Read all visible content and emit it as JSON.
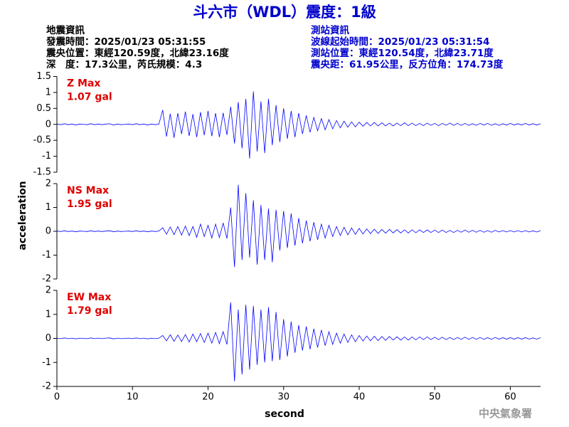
{
  "chart_data": {
    "type": "line",
    "title": "斗六市（WDL）震度：1級",
    "info_left": [
      "地震資訊",
      "發震時間：2025/01/23 05:31:55",
      "震央位置：東經120.59度，北緯23.16度",
      "深　度：17.3公里，芮氏規模：4.3"
    ],
    "info_right": [
      "測站資訊",
      "波線起始時間：2025/01/23 05:31:54",
      "測站位置：東經120.54度，北緯23.71度",
      "震央距：61.95公里，反方位角：174.73度"
    ],
    "footer": "中央氣象署",
    "xlabel": "second",
    "ylabel": "acceleration",
    "xlim": [
      0,
      64
    ],
    "xticks": [
      0,
      10,
      20,
      30,
      40,
      50,
      60
    ],
    "x": [
      0,
      0.5,
      1,
      1.5,
      2,
      2.5,
      3,
      3.5,
      4,
      4.5,
      5,
      5.5,
      6,
      6.5,
      7,
      7.5,
      8,
      8.5,
      9,
      9.5,
      10,
      10.5,
      11,
      11.5,
      12,
      12.5,
      13,
      13.5,
      14,
      14.5,
      15,
      15.5,
      16,
      16.5,
      17,
      17.5,
      18,
      18.5,
      19,
      19.5,
      20,
      20.5,
      21,
      21.5,
      22,
      22.5,
      23,
      23.5,
      24,
      24.5,
      25,
      25.5,
      26,
      26.5,
      27,
      27.5,
      28,
      28.5,
      29,
      29.5,
      30,
      30.5,
      31,
      31.5,
      32,
      32.5,
      33,
      33.5,
      34,
      34.5,
      35,
      35.5,
      36,
      36.5,
      37,
      37.5,
      38,
      38.5,
      39,
      39.5,
      40,
      40.5,
      41,
      41.5,
      42,
      42.5,
      43,
      43.5,
      44,
      44.5,
      45,
      45.5,
      46,
      46.5,
      47,
      47.5,
      48,
      48.5,
      49,
      49.5,
      50,
      50.5,
      51,
      51.5,
      52,
      52.5,
      53,
      53.5,
      54,
      54.5,
      55,
      55.5,
      56,
      56.5,
      57,
      57.5,
      58,
      58.5,
      59,
      59.5,
      60,
      60.5,
      61,
      61.5,
      62,
      62.5,
      63,
      63.5,
      64
    ],
    "series": [
      {
        "name": "Z Max",
        "annotation": "1.07 gal",
        "color": "#0000ff",
        "label_color": "#e00000",
        "ylim": [
          -1.5,
          1.5
        ],
        "yticks": [
          1.5,
          1,
          0.5,
          0,
          -0.5,
          -1,
          -1.5
        ],
        "values": [
          0.01,
          -0.01,
          0.02,
          -0.01,
          0.01,
          -0.02,
          0.01,
          0,
          -0.01,
          0.02,
          -0.01,
          0.01,
          -0.01,
          0.01,
          0.02,
          -0.02,
          0.01,
          -0.01,
          0,
          0.01,
          -0.01,
          0.02,
          -0.01,
          0.01,
          -0.02,
          0.01,
          -0.01,
          0.01,
          0.45,
          -0.38,
          0.33,
          -0.42,
          0.35,
          -0.3,
          0.4,
          -0.36,
          0.32,
          -0.4,
          0.38,
          -0.34,
          0.42,
          -0.37,
          0.35,
          -0.4,
          0.36,
          -0.33,
          0.55,
          -0.6,
          0.7,
          -0.75,
          0.8,
          -1.07,
          1.03,
          -0.85,
          0.72,
          -0.9,
          0.8,
          -0.65,
          0.6,
          -0.55,
          0.5,
          -0.45,
          0.42,
          -0.4,
          0.35,
          -0.3,
          0.28,
          -0.25,
          0.22,
          -0.2,
          0.18,
          -0.17,
          0.15,
          -0.14,
          0.12,
          -0.11,
          0.1,
          -0.09,
          0.08,
          -0.08,
          0.07,
          -0.06,
          0.06,
          -0.05,
          0.06,
          -0.05,
          0.05,
          -0.05,
          0.04,
          -0.05,
          0.04,
          -0.04,
          0.05,
          -0.04,
          0.04,
          -0.04,
          0.03,
          -0.04,
          0.04,
          -0.03,
          0.03,
          -0.04,
          0.03,
          -0.03,
          0.04,
          -0.03,
          0.03,
          -0.03,
          0.03,
          -0.03,
          0.02,
          -0.03,
          0.03,
          -0.02,
          0.03,
          -0.03,
          0.02,
          -0.03,
          0.02,
          -0.02,
          0.03,
          -0.02,
          0.02,
          -0.02,
          0.03,
          -0.02,
          0.02,
          -0.02,
          0.02
        ]
      },
      {
        "name": "NS Max",
        "annotation": "1.95 gal",
        "color": "#0000ff",
        "label_color": "#e00000",
        "ylim": [
          -2,
          2
        ],
        "yticks": [
          2,
          1,
          0,
          -1,
          -2
        ],
        "values": [
          0.01,
          -0.01,
          0.02,
          -0.01,
          0.01,
          -0.02,
          0.01,
          0,
          -0.01,
          0.02,
          -0.01,
          0.01,
          -0.01,
          0.01,
          0.02,
          -0.02,
          0.01,
          -0.01,
          0,
          0.01,
          -0.01,
          0.02,
          -0.01,
          0.01,
          -0.02,
          0.01,
          -0.01,
          0.01,
          0.15,
          -0.12,
          0.18,
          -0.14,
          0.2,
          -0.16,
          0.22,
          -0.18,
          0.2,
          -0.25,
          0.3,
          -0.22,
          0.25,
          -0.28,
          0.3,
          -0.26,
          0.35,
          -0.3,
          1.0,
          -1.5,
          1.95,
          -1.2,
          1.6,
          -1.1,
          1.3,
          -1.4,
          1.1,
          -1.2,
          0.95,
          -1.3,
          0.9,
          -0.8,
          0.85,
          -0.7,
          0.75,
          -0.6,
          0.55,
          -0.5,
          0.45,
          -0.42,
          0.38,
          -0.35,
          0.3,
          -0.28,
          0.25,
          -0.22,
          0.2,
          -0.18,
          0.17,
          -0.15,
          0.14,
          -0.13,
          0.12,
          -0.11,
          0.1,
          -0.1,
          0.09,
          -0.09,
          0.08,
          -0.08,
          0.08,
          -0.07,
          0.07,
          -0.07,
          0.06,
          -0.07,
          0.06,
          -0.06,
          0.06,
          -0.05,
          0.06,
          -0.05,
          0.05,
          -0.05,
          0.05,
          -0.05,
          0.04,
          -0.05,
          0.04,
          -0.04,
          0.05,
          -0.04,
          0.04,
          -0.04,
          0.04,
          -0.04,
          0.03,
          -0.04,
          0.04,
          -0.03,
          0.03,
          -0.03,
          0.03,
          -0.03,
          0.03,
          -0.03,
          0.03,
          -0.03,
          0.02,
          -0.03,
          0.03
        ]
      },
      {
        "name": "EW Max",
        "annotation": "1.79 gal",
        "color": "#0000ff",
        "label_color": "#e00000",
        "ylim": [
          -2,
          2
        ],
        "yticks": [
          2,
          1,
          0,
          -1,
          -2
        ],
        "values": [
          0.01,
          -0.01,
          0.02,
          -0.01,
          0.01,
          -0.02,
          0.01,
          0,
          -0.01,
          0.02,
          -0.01,
          0.01,
          -0.01,
          0.01,
          0.02,
          -0.02,
          0.01,
          -0.01,
          0,
          0.01,
          -0.01,
          0.02,
          -0.01,
          0.01,
          -0.02,
          0.01,
          -0.01,
          0.01,
          0.12,
          -0.1,
          0.15,
          -0.12,
          0.14,
          -0.13,
          0.16,
          -0.15,
          0.18,
          -0.14,
          0.2,
          -0.17,
          0.22,
          -0.2,
          0.25,
          -0.22,
          0.28,
          -0.25,
          1.5,
          -1.79,
          1.2,
          -1.5,
          1.4,
          -1.3,
          1.35,
          -1.1,
          1.2,
          -1.0,
          1.3,
          -0.95,
          1.1,
          -0.9,
          0.8,
          -0.75,
          0.7,
          -0.6,
          0.55,
          -0.5,
          0.5,
          -0.45,
          0.4,
          -0.38,
          0.35,
          -0.3,
          0.28,
          -0.25,
          0.22,
          -0.2,
          0.18,
          -0.17,
          0.15,
          -0.14,
          0.12,
          -0.11,
          0.1,
          -0.1,
          0.09,
          -0.09,
          0.08,
          -0.08,
          0.08,
          -0.07,
          0.07,
          -0.07,
          0.06,
          -0.07,
          0.06,
          -0.06,
          0.06,
          -0.05,
          0.06,
          -0.05,
          0.05,
          -0.05,
          0.05,
          -0.05,
          0.04,
          -0.05,
          0.04,
          -0.04,
          0.05,
          -0.04,
          0.04,
          -0.04,
          0.04,
          -0.04,
          0.03,
          -0.04,
          0.04,
          -0.03,
          0.03,
          -0.03,
          0.03,
          -0.03,
          0.03,
          -0.03,
          0.03,
          -0.03,
          0.02,
          -0.03,
          0.03
        ]
      }
    ]
  }
}
